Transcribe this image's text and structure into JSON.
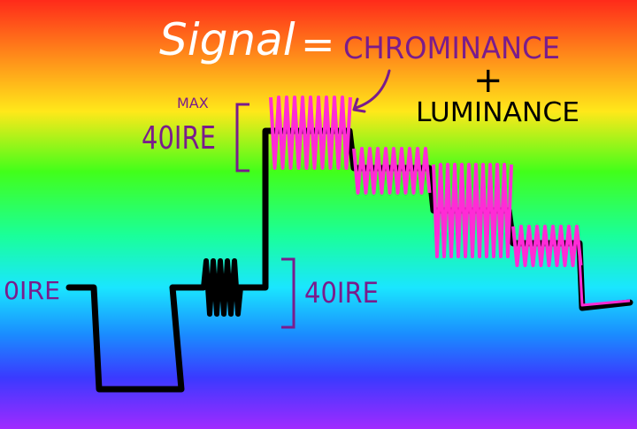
{
  "title": {
    "word": "Signal",
    "equals": "=",
    "term1": "CHROMINANCE",
    "plus": "+",
    "term2": "LUMINANCE"
  },
  "labels": {
    "max_small": "MAX",
    "max_value": "40IRE",
    "zero_label": "0IRE",
    "burst_amplitude": "40IRE"
  },
  "colors": {
    "luminance_trace": "#000000",
    "chrominance_trace": "#ff2bd6",
    "title_word": "#ffffff",
    "label_purple": "#7a1c8c",
    "gradient": [
      "#ff2a1a",
      "#ff8a1a",
      "#ffe81a",
      "#42ff1a",
      "#1aff9a",
      "#1ae6ff",
      "#1a8cff",
      "#3a3aff",
      "#a02aff"
    ]
  }
}
